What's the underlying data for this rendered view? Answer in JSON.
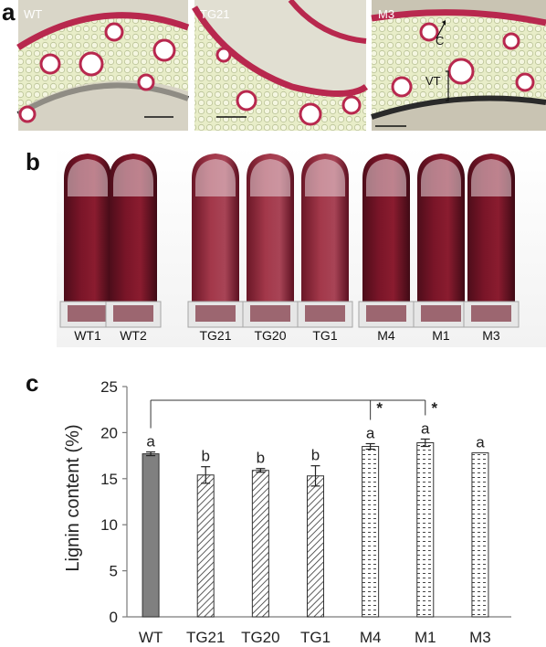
{
  "panels": {
    "a": {
      "letter": "a",
      "images": [
        {
          "label": "WT"
        },
        {
          "label": "TG21"
        },
        {
          "label": "M3"
        }
      ],
      "annotations": {
        "c_label": "C",
        "vt_label": "VT"
      }
    },
    "b": {
      "letter": "b",
      "tubes": [
        "WT1",
        "WT2",
        "TG21",
        "TG20",
        "TG1",
        "M4",
        "M1",
        "M3"
      ]
    },
    "c": {
      "letter": "c"
    }
  },
  "chart_data": {
    "type": "bar",
    "categories": [
      "WT",
      "TG21",
      "TG20",
      "TG1",
      "M4",
      "M1",
      "M3"
    ],
    "values": [
      17.7,
      15.4,
      15.9,
      15.3,
      18.5,
      18.9,
      17.8
    ],
    "errors": [
      0.2,
      0.9,
      0.2,
      1.1,
      0.3,
      0.4,
      0.0
    ],
    "significance_letters": [
      "a",
      "b",
      "b",
      "b",
      "a",
      "a",
      "a"
    ],
    "comparison_bracket": {
      "from": "WT",
      "to": [
        "M4",
        "M1"
      ],
      "marks": [
        "*",
        "*"
      ]
    },
    "ylabel": "Lignin content (%)",
    "ylim": [
      0,
      25
    ],
    "yticks": [
      "0",
      "5",
      "10",
      "15",
      "20",
      "25"
    ],
    "grid": false,
    "fills": [
      "solid-gray",
      "hatch",
      "hatch",
      "hatch",
      "dots",
      "dots",
      "dots"
    ],
    "colors": {
      "solid": "#808080",
      "stroke": "#333333",
      "axis": "#7a7a7a"
    }
  }
}
